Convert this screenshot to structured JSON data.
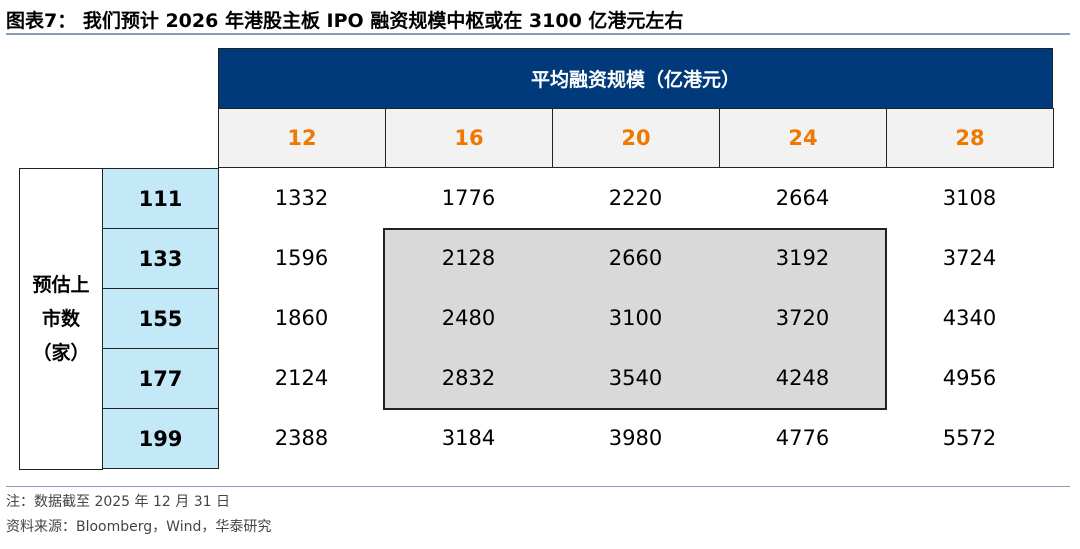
{
  "title": "图表7：  我们预计 2026 年港股主板 IPO 融资规模中枢或在 3100 亿港元左右",
  "table": {
    "col_group_header": "平均融资规模（亿港元）",
    "row_group_header": "预估上市数（家）",
    "columns": [
      "12",
      "16",
      "20",
      "24",
      "28"
    ],
    "rows": [
      {
        "label": "111",
        "values": [
          "1332",
          "1776",
          "2220",
          "2664",
          "3108"
        ]
      },
      {
        "label": "133",
        "values": [
          "1596",
          "2128",
          "2660",
          "3192",
          "3724"
        ]
      },
      {
        "label": "155",
        "values": [
          "1860",
          "2480",
          "3100",
          "3720",
          "4340"
        ]
      },
      {
        "label": "177",
        "values": [
          "2124",
          "2832",
          "3540",
          "4248",
          "4956"
        ]
      },
      {
        "label": "199",
        "values": [
          "2388",
          "3184",
          "3980",
          "4776",
          "5572"
        ]
      }
    ],
    "highlighted_range": "rows 133-177, columns 16-24"
  },
  "footnote": "注：数据截至 2025 年 12 月 31 日",
  "source": "资料来源：Bloomberg，Wind，华泰研究",
  "colors": {
    "header": "#003a7a",
    "column_values": "#f07800",
    "row_labels_bg": "#c3e8f8",
    "highlight": "#d9d9d9"
  }
}
